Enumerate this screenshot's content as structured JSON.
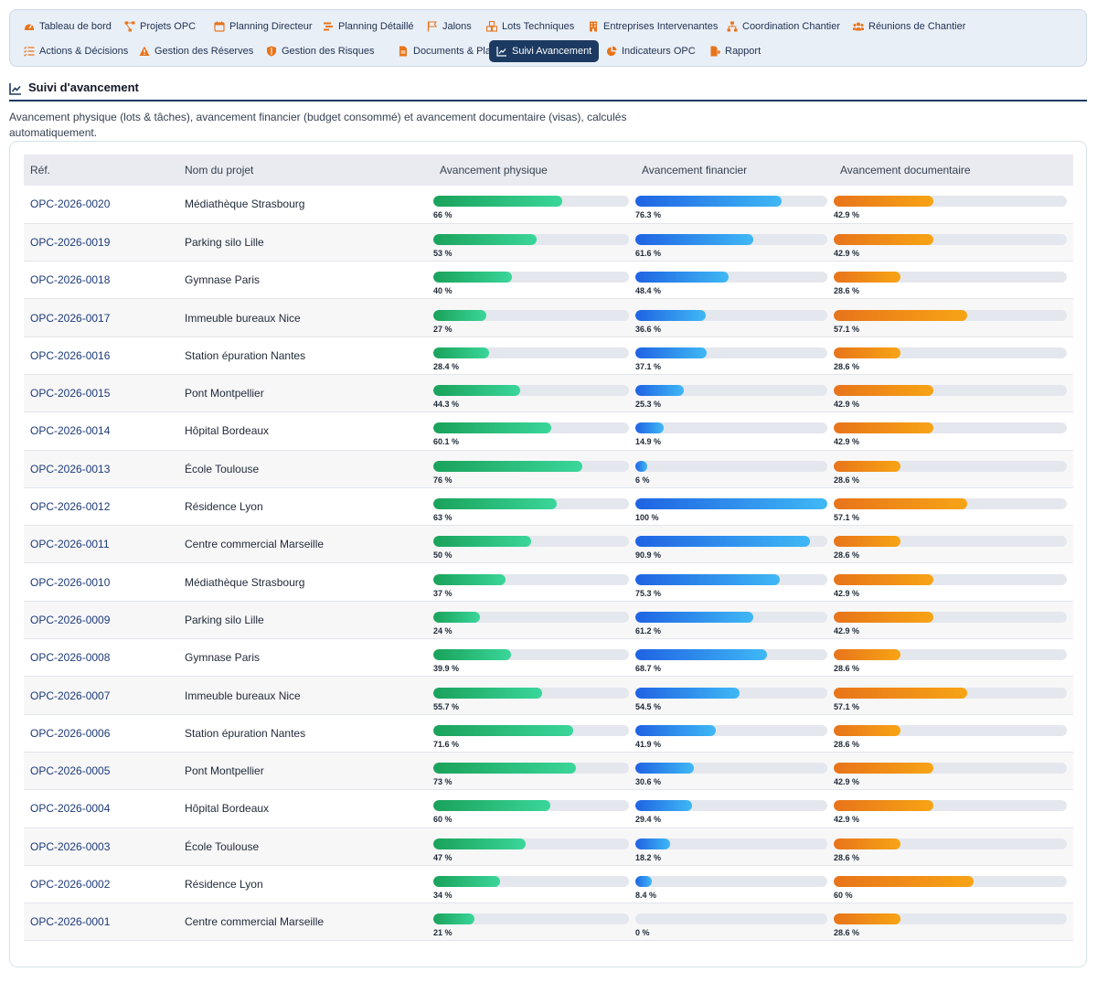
{
  "nav": {
    "row1": [
      {
        "label": "Tableau de bord",
        "icon": "dashboard-icon"
      },
      {
        "label": "Projets OPC",
        "icon": "project-diagram-icon"
      },
      {
        "label": "Planning Directeur",
        "icon": "calendar-icon"
      },
      {
        "label": "Planning Détaillé",
        "icon": "gantt-icon"
      },
      {
        "label": "Jalons",
        "icon": "flag-icon"
      },
      {
        "label": "Lots Techniques",
        "icon": "cubes-icon"
      },
      {
        "label": "Entreprises Intervenantes",
        "icon": "building-icon"
      },
      {
        "label": "Coordination Chantier",
        "icon": "sitemap-icon"
      },
      {
        "label": "Réunions de Chantier",
        "icon": "users-icon"
      }
    ],
    "row2": [
      {
        "label": "Actions & Décisions",
        "icon": "list-check-icon"
      },
      {
        "label": "Gestion des Réserves",
        "icon": "warning-icon"
      },
      {
        "label": "Gestion des Risques",
        "icon": "shield-icon"
      },
      {
        "label": "Documents & Plans",
        "icon": "file-icon"
      },
      {
        "label": "Suivi Avancement",
        "icon": "chart-line-icon",
        "active": true
      },
      {
        "label": "Indicateurs OPC",
        "icon": "chart-pie-icon"
      },
      {
        "label": "Rapport",
        "icon": "file-export-icon"
      }
    ]
  },
  "section": {
    "title": "Suivi d'avancement",
    "description": "Avancement physique (lots & tâches), avancement financier (budget consommé) et avancement documentaire (visas), calculés automatiquement."
  },
  "table": {
    "headers": [
      "Réf.",
      "Nom du projet",
      "Avancement physique",
      "Avancement financier",
      "Avancement documentaire"
    ],
    "rows": [
      {
        "ref": "OPC-2026-0020",
        "name": "Médiathèque Strasbourg",
        "physique": 66,
        "physique_label": "66 %",
        "financier": 76.3,
        "financier_label": "76.3 %",
        "documentaire": 42.9,
        "documentaire_label": "42.9 %"
      },
      {
        "ref": "OPC-2026-0019",
        "name": "Parking silo Lille",
        "physique": 53,
        "physique_label": "53 %",
        "financier": 61.6,
        "financier_label": "61.6 %",
        "documentaire": 42.9,
        "documentaire_label": "42.9 %"
      },
      {
        "ref": "OPC-2026-0018",
        "name": "Gymnase Paris",
        "physique": 40,
        "physique_label": "40 %",
        "financier": 48.4,
        "financier_label": "48.4 %",
        "documentaire": 28.6,
        "documentaire_label": "28.6 %"
      },
      {
        "ref": "OPC-2026-0017",
        "name": "Immeuble bureaux Nice",
        "physique": 27,
        "physique_label": "27 %",
        "financier": 36.6,
        "financier_label": "36.6 %",
        "documentaire": 57.1,
        "documentaire_label": "57.1 %"
      },
      {
        "ref": "OPC-2026-0016",
        "name": "Station épuration Nantes",
        "physique": 28.4,
        "physique_label": "28.4 %",
        "financier": 37.1,
        "financier_label": "37.1 %",
        "documentaire": 28.6,
        "documentaire_label": "28.6 %"
      },
      {
        "ref": "OPC-2026-0015",
        "name": "Pont Montpellier",
        "physique": 44.3,
        "physique_label": "44.3 %",
        "financier": 25.3,
        "financier_label": "25.3 %",
        "documentaire": 42.9,
        "documentaire_label": "42.9 %"
      },
      {
        "ref": "OPC-2026-0014",
        "name": "Hôpital Bordeaux",
        "physique": 60.1,
        "physique_label": "60.1 %",
        "financier": 14.9,
        "financier_label": "14.9 %",
        "documentaire": 42.9,
        "documentaire_label": "42.9 %"
      },
      {
        "ref": "OPC-2026-0013",
        "name": "École Toulouse",
        "physique": 76,
        "physique_label": "76 %",
        "financier": 6,
        "financier_label": "6 %",
        "documentaire": 28.6,
        "documentaire_label": "28.6 %"
      },
      {
        "ref": "OPC-2026-0012",
        "name": "Résidence Lyon",
        "physique": 63,
        "physique_label": "63 %",
        "financier": 100,
        "financier_label": "100 %",
        "documentaire": 57.1,
        "documentaire_label": "57.1 %"
      },
      {
        "ref": "OPC-2026-0011",
        "name": "Centre commercial Marseille",
        "physique": 50,
        "physique_label": "50 %",
        "financier": 90.9,
        "financier_label": "90.9 %",
        "documentaire": 28.6,
        "documentaire_label": "28.6 %"
      },
      {
        "ref": "OPC-2026-0010",
        "name": "Médiathèque Strasbourg",
        "physique": 37,
        "physique_label": "37 %",
        "financier": 75.3,
        "financier_label": "75.3 %",
        "documentaire": 42.9,
        "documentaire_label": "42.9 %"
      },
      {
        "ref": "OPC-2026-0009",
        "name": "Parking silo Lille",
        "physique": 24,
        "physique_label": "24 %",
        "financier": 61.2,
        "financier_label": "61.2 %",
        "documentaire": 42.9,
        "documentaire_label": "42.9 %"
      },
      {
        "ref": "OPC-2026-0008",
        "name": "Gymnase Paris",
        "physique": 39.9,
        "physique_label": "39.9 %",
        "financier": 68.7,
        "financier_label": "68.7 %",
        "documentaire": 28.6,
        "documentaire_label": "28.6 %"
      },
      {
        "ref": "OPC-2026-0007",
        "name": "Immeuble bureaux Nice",
        "physique": 55.7,
        "physique_label": "55.7 %",
        "financier": 54.5,
        "financier_label": "54.5 %",
        "documentaire": 57.1,
        "documentaire_label": "57.1 %"
      },
      {
        "ref": "OPC-2026-0006",
        "name": "Station épuration Nantes",
        "physique": 71.6,
        "physique_label": "71.6 %",
        "financier": 41.9,
        "financier_label": "41.9 %",
        "documentaire": 28.6,
        "documentaire_label": "28.6 %"
      },
      {
        "ref": "OPC-2026-0005",
        "name": "Pont Montpellier",
        "physique": 73,
        "physique_label": "73 %",
        "financier": 30.6,
        "financier_label": "30.6 %",
        "documentaire": 42.9,
        "documentaire_label": "42.9 %"
      },
      {
        "ref": "OPC-2026-0004",
        "name": "Hôpital Bordeaux",
        "physique": 60,
        "physique_label": "60 %",
        "financier": 29.4,
        "financier_label": "29.4 %",
        "documentaire": 42.9,
        "documentaire_label": "42.9 %"
      },
      {
        "ref": "OPC-2026-0003",
        "name": "École Toulouse",
        "physique": 47,
        "physique_label": "47 %",
        "financier": 18.2,
        "financier_label": "18.2 %",
        "documentaire": 28.6,
        "documentaire_label": "28.6 %"
      },
      {
        "ref": "OPC-2026-0002",
        "name": "Résidence Lyon",
        "physique": 34,
        "physique_label": "34 %",
        "financier": 8.4,
        "financier_label": "8.4 %",
        "documentaire": 60,
        "documentaire_label": "60 %"
      },
      {
        "ref": "OPC-2026-0001",
        "name": "Centre commercial Marseille",
        "physique": 21,
        "physique_label": "21 %",
        "financier": 0,
        "financier_label": "0 %",
        "documentaire": 28.6,
        "documentaire_label": "28.6 %"
      }
    ]
  },
  "colors": {
    "accent": "#1c3a61",
    "icon_orange": "#e8741a",
    "physique_gradient": [
      "#1aa25a",
      "#3ad69a"
    ],
    "financier_gradient": [
      "#1f63e3",
      "#3fb8f5"
    ],
    "documentaire_gradient": [
      "#e8741a",
      "#f7a415"
    ]
  }
}
